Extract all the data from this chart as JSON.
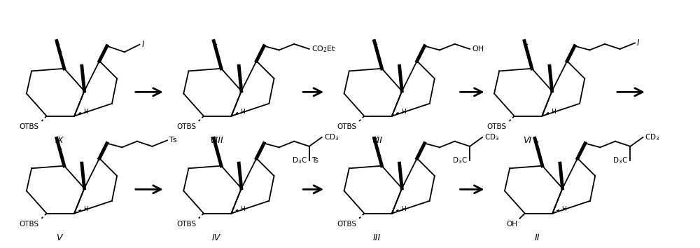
{
  "background": "#ffffff",
  "figsize": [
    10.0,
    3.54
  ],
  "dpi": 100,
  "row1_compounds": [
    "IX",
    "VIII",
    "VII",
    "VI"
  ],
  "row2_compounds": [
    "V",
    "IV",
    "III",
    "II"
  ],
  "lw": 1.3,
  "lw_bold": 3.5,
  "scale": 1.0
}
